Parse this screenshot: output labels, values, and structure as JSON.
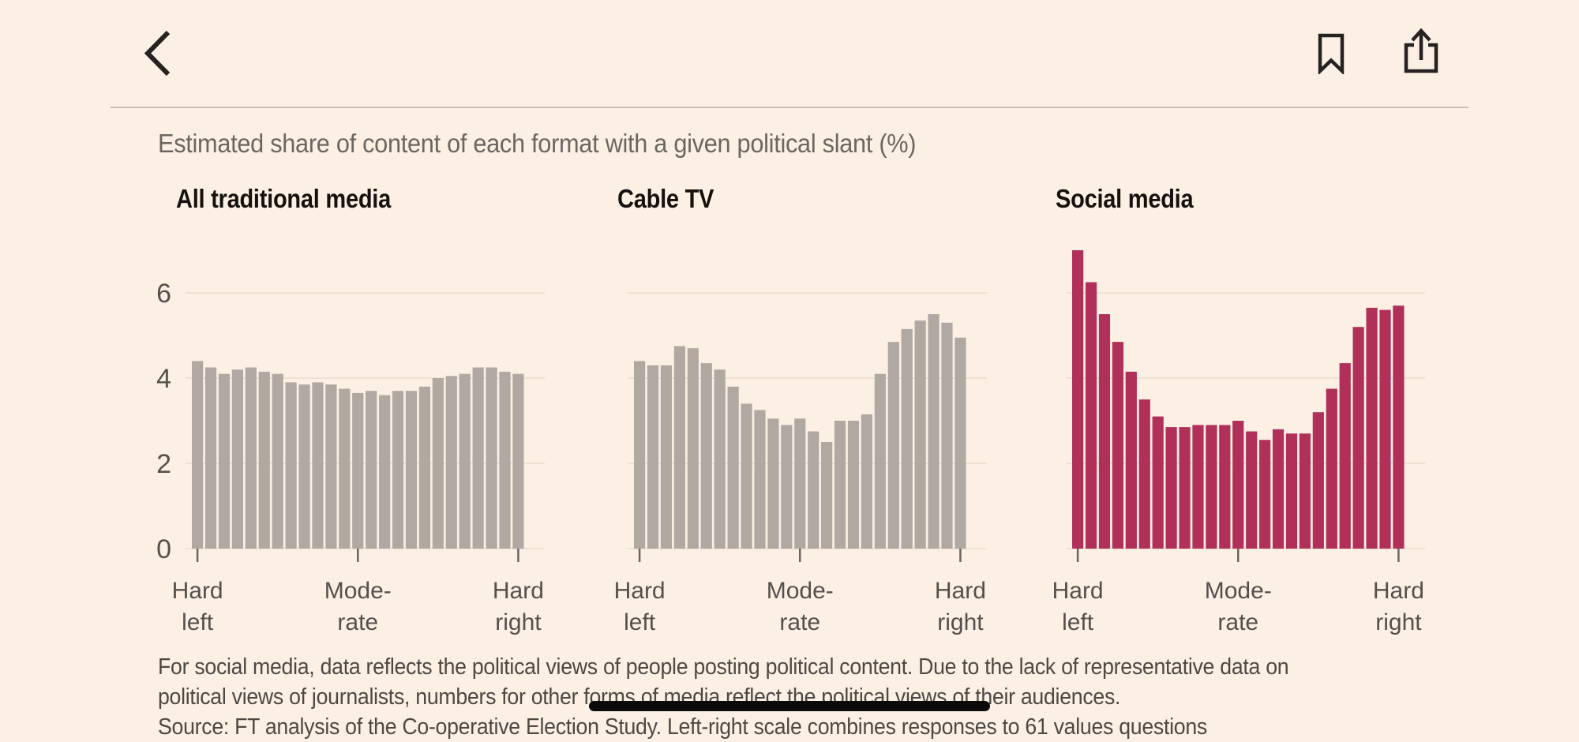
{
  "nav": {
    "back_icon": "chevron-left",
    "bookmark_icon": "bookmark-outline",
    "share_icon": "share-up-arrow"
  },
  "title": "Estimated share of content of each format with a given political slant (%)",
  "chart_data": [
    {
      "type": "bar",
      "title": "All traditional media",
      "bar_color": "#b2a8a2",
      "n_bins": 25,
      "x_scale": "political slant from Hard left to Hard right",
      "x_tick_labels": [
        "Hard left",
        "Mode-rate",
        "Hard right"
      ],
      "y_ticks": [
        0,
        2,
        4,
        6
      ],
      "ylim": [
        0,
        7.2
      ],
      "grid": true,
      "values": [
        4.4,
        4.25,
        4.1,
        4.2,
        4.25,
        4.15,
        4.1,
        3.9,
        3.85,
        3.9,
        3.85,
        3.75,
        3.65,
        3.7,
        3.6,
        3.7,
        3.7,
        3.8,
        4.0,
        4.05,
        4.1,
        4.25,
        4.25,
        4.15,
        4.1
      ]
    },
    {
      "type": "bar",
      "title": "Cable TV",
      "bar_color": "#b2a8a2",
      "n_bins": 25,
      "x_scale": "political slant from Hard left to Hard right",
      "x_tick_labels": [
        "Hard left",
        "Mode-rate",
        "Hard right"
      ],
      "y_ticks": [
        0,
        2,
        4,
        6
      ],
      "ylim": [
        0,
        7.2
      ],
      "grid": true,
      "values": [
        4.4,
        4.3,
        4.3,
        4.75,
        4.7,
        4.35,
        4.2,
        3.8,
        3.4,
        3.25,
        3.05,
        2.9,
        3.05,
        2.75,
        2.5,
        3.0,
        3.0,
        3.15,
        4.1,
        4.85,
        5.15,
        5.35,
        5.5,
        5.3,
        4.95
      ]
    },
    {
      "type": "bar",
      "title": "Social media",
      "bar_color": "#b0305a",
      "n_bins": 25,
      "x_scale": "political slant from Hard left to Hard right",
      "x_tick_labels": [
        "Hard left",
        "Mode-rate",
        "Hard right"
      ],
      "y_ticks": [
        0,
        2,
        4,
        6
      ],
      "ylim": [
        0,
        7.2
      ],
      "grid": true,
      "values": [
        7.0,
        6.25,
        5.5,
        4.85,
        4.15,
        3.5,
        3.1,
        2.85,
        2.85,
        2.9,
        2.9,
        2.9,
        3.0,
        2.75,
        2.55,
        2.8,
        2.7,
        2.7,
        3.2,
        3.75,
        4.35,
        5.2,
        5.65,
        5.6,
        5.7
      ]
    }
  ],
  "axes": {
    "y_ticks": [
      0,
      2,
      4,
      6
    ],
    "x_tick_lines": [
      [
        "Hard",
        "left"
      ],
      [
        "Mode-",
        "rate"
      ],
      [
        "Hard",
        "right"
      ]
    ],
    "x_tick_bar_indexes": [
      0,
      12,
      24
    ]
  },
  "footnote": {
    "line1": "For social media, data reflects the political views of people posting political content. Due to the lack of representative data on",
    "line2": "political views of journalists, numbers for other forms of media reflect the political views of their audiences.",
    "source": "Source: FT analysis of the Co-operative Election Study. Left-right scale combines responses to 61 values questions"
  },
  "colors": {
    "background": "#fcf0e4",
    "bar_neutral": "#b2a8a2",
    "bar_accent": "#b0305a",
    "gridline": "#e9dccd",
    "axis_text": "#55504c",
    "tick_mark": "#6b6560",
    "page_title_text": "#6c6661",
    "chart_title_text": "#16110d",
    "footnote_text": "#4e4843",
    "divider": "#c9bfb5",
    "icon": "#272220",
    "home_indicator": "#0b0a09"
  }
}
